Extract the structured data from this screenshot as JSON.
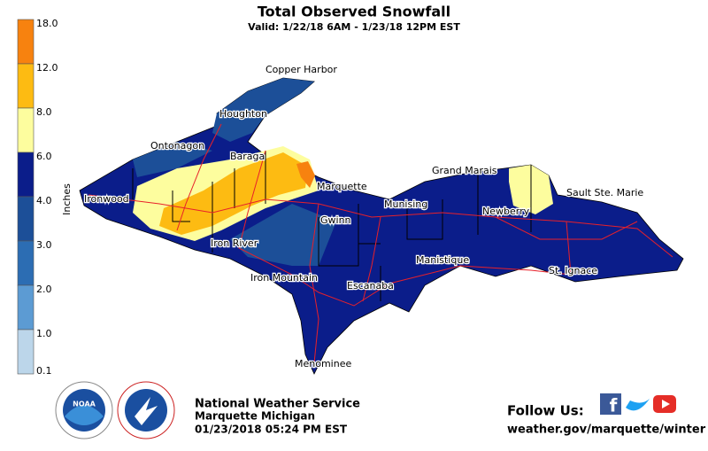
{
  "header": {
    "title": "Total Observed Snowfall",
    "subtitle": "Valid: 1/22/18 6AM - 1/23/18 12PM EST"
  },
  "legend": {
    "unit": "Inches",
    "labels": [
      "18.0",
      "12.0",
      "8.0",
      "6.0",
      "4.0",
      "3.0",
      "2.0",
      "1.0",
      "0.1"
    ],
    "colors": [
      "#f7820f",
      "#fdbb12",
      "#fdfd9e",
      "#0b1d8a",
      "#1c4f98",
      "#2c6db3",
      "#5c9bd3",
      "#bcd6ea"
    ]
  },
  "map": {
    "places": [
      "Copper Harbor",
      "Houghton",
      "Ontonagon",
      "Baraga",
      "Ironwood",
      "Marquette",
      "Grand Marais",
      "Munising",
      "Gwinn",
      "Newberry",
      "Sault Ste. Marie",
      "Iron River",
      "Manistique",
      "Iron Mountain",
      "St. Ignace",
      "Escanaba",
      "Menominee"
    ]
  },
  "footer": {
    "agency": "National Weather Service",
    "office": "Marquette Michigan",
    "timestamp": "01/23/2018 05:24 PM EST",
    "follow": "Follow Us:",
    "url": "weather.gov/marquette/winter"
  }
}
